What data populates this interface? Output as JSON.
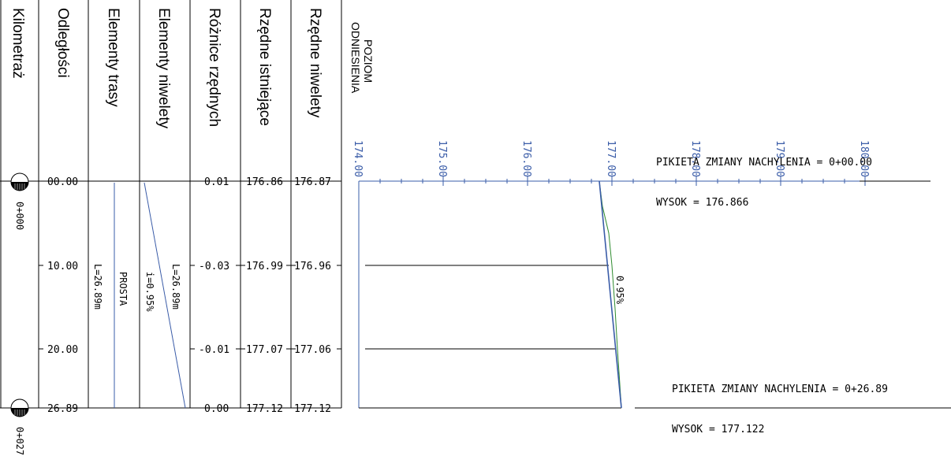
{
  "table": {
    "headers": {
      "kilometraz": "Kilometraż",
      "odleglosci": "Odległości",
      "elementy_trasy": "Elementy trasy",
      "elementy_niwelety": "Elementy niwelety",
      "roznice_rzednych": "Różnice rzędnych",
      "rzedne_istniejace": "Rzędne istniejące",
      "rzedne_niwelety": "Rzędne niwelety"
    },
    "km_labels": [
      "0+000",
      "0+027"
    ],
    "odleglosci": [
      "00.00",
      "10.00",
      "20.00",
      "26.89"
    ],
    "elementy_trasy": {
      "length": "L=26.89m",
      "type": "PROSTA"
    },
    "elementy_niwelety": {
      "slope": "i=0.95%",
      "length": "L=26.89m"
    },
    "roznice_rzednych": [
      "0.01",
      "-0.03",
      "-0.01",
      "0.00"
    ],
    "rzedne_istniejace": [
      "176.86",
      "176.99",
      "177.07",
      "177.12"
    ],
    "rzedne_niwelety": [
      "176.87",
      "176.96",
      "177.06",
      "177.12"
    ]
  },
  "chart": {
    "poziom_line1": "POZIOM",
    "poziom_line2": "ODNIESIENIA",
    "scale_labels": [
      "174.00",
      "175.00",
      "176.00",
      "177.00",
      "178.00",
      "179.00",
      "180.00"
    ],
    "slope_label": "0.95%",
    "colors": {
      "design": "#3a5ca8",
      "existing": "#2e8b2e",
      "grid": "#000000"
    }
  },
  "annotations": {
    "top_title": "PIKIETA ZMIANY NACHYLENIA = 0+00.00",
    "top_height": "WYSOK =  176.866",
    "bottom_title": "PIKIETA ZMIANY NACHYLENIA = 0+26.89",
    "bottom_height": "WYSOK =  177.122"
  }
}
